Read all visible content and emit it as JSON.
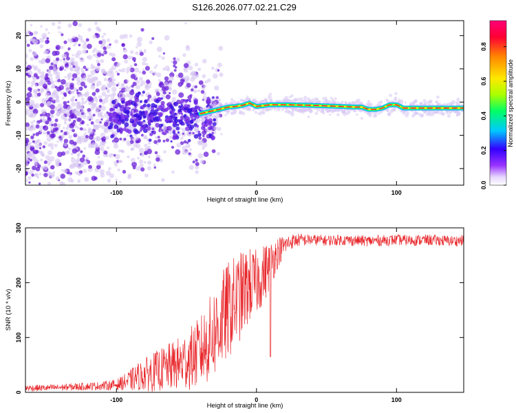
{
  "figure_title": "S126.2026.077.02.21.C29",
  "colors": {
    "snr_line": "#e8282c",
    "trace_edge": "#00a8ff",
    "scatter_light": "#d7c6f2",
    "scatter_dark": "#6a1ed8",
    "frame": "#000000"
  },
  "chart_data": [
    {
      "type": "heatmap",
      "title": "S126.2026.077.02.21.C29",
      "xlabel": "Height of straight line (km)",
      "ylabel": "Frequency (Hz)",
      "xlim": [
        -165,
        148
      ],
      "ylim": [
        -25,
        24.5
      ],
      "xticks": [
        -100,
        0,
        100
      ],
      "yticks": [
        20,
        10,
        0,
        -10,
        -20
      ],
      "xtick_labels": [
        "-100",
        "0",
        "100"
      ],
      "ytick_labels": [
        "20",
        "10",
        "0",
        "-10",
        "-20"
      ],
      "colorbar": {
        "label": "Normalized spectral amplitude",
        "range": [
          0.0,
          0.95
        ],
        "ticks": [
          0.0,
          0.2,
          0.4,
          0.6,
          0.8
        ],
        "tick_labels": [
          "0.0",
          "0.2",
          "0.4",
          "0.6",
          "0.8"
        ],
        "colormap": [
          "#ffffff",
          "#9933ff",
          "#3300ff",
          "#00c8ff",
          "#00ff66",
          "#aaff00",
          "#ffe800",
          "#ff8800",
          "#ff0033",
          "#ff0077"
        ]
      },
      "dominant_frequency_trace": {
        "x": [
          -40,
          -30,
          -20,
          -15,
          -10,
          -5,
          0,
          10,
          20,
          40,
          60,
          70,
          75,
          80,
          85,
          90,
          95,
          100,
          105,
          120,
          148
        ],
        "y": [
          -3.5,
          -2.5,
          -1.5,
          -1.3,
          -1.0,
          -0.3,
          -1.3,
          -0.8,
          -0.8,
          -1.0,
          -1.3,
          -1.5,
          -1.5,
          -2.2,
          -2.2,
          -1.8,
          -0.8,
          -0.8,
          -1.8,
          -1.8,
          -1.8
        ]
      }
    },
    {
      "type": "line",
      "xlabel": "Height of straight line (km)",
      "ylabel": "SNR (10 * v/v)",
      "xlim": [
        -165,
        148
      ],
      "ylim": [
        0,
        300
      ],
      "xticks": [
        -100,
        0,
        100
      ],
      "yticks": [
        0,
        100,
        200,
        300
      ],
      "xtick_labels": [
        "-100",
        "0",
        "100"
      ],
      "ytick_labels": [
        "0",
        "100",
        "200",
        "300"
      ],
      "series": [
        {
          "name": "SNR",
          "x": [
            -165,
            -150,
            -140,
            -130,
            -120,
            -110,
            -100,
            -95,
            -90,
            -85,
            -80,
            -75,
            -70,
            -65,
            -60,
            -55,
            -50,
            -45,
            -40,
            -35,
            -30,
            -25,
            -20,
            -15,
            -10,
            -5,
            0,
            5,
            10,
            15,
            20,
            25,
            30,
            40,
            50,
            60,
            70,
            80,
            90,
            100,
            110,
            120,
            130,
            140,
            148
          ],
          "y": [
            8,
            8,
            9,
            10,
            11,
            12,
            14,
            18,
            22,
            28,
            32,
            36,
            40,
            44,
            48,
            52,
            58,
            65,
            75,
            90,
            110,
            130,
            150,
            165,
            180,
            195,
            200,
            215,
            235,
            255,
            268,
            275,
            278,
            278,
            277,
            278,
            277,
            276,
            277,
            278,
            277,
            278,
            277,
            276,
            277
          ],
          "noise": [
            6,
            6,
            6,
            7,
            7,
            8,
            10,
            14,
            20,
            25,
            30,
            35,
            38,
            42,
            45,
            50,
            55,
            60,
            65,
            75,
            85,
            90,
            90,
            85,
            80,
            70,
            60,
            55,
            45,
            30,
            18,
            14,
            12,
            10,
            10,
            10,
            10,
            10,
            10,
            10,
            10,
            10,
            10,
            10,
            10
          ],
          "dips": [
            {
              "x": 10,
              "y": 65
            }
          ]
        }
      ]
    }
  ]
}
